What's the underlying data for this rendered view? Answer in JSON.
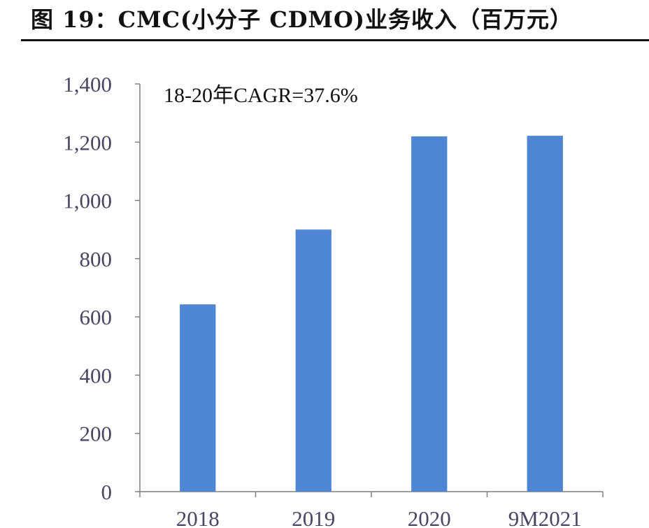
{
  "figure": {
    "title": "图 19：CMC(小分子 CDMO)业务收入（百万元）"
  },
  "chart_data": {
    "type": "bar",
    "title": "图 19：CMC(小分子 CDMO)业务收入（百万元）",
    "categories": [
      "2018",
      "2019",
      "2020",
      "9M2021"
    ],
    "values": [
      643,
      900,
      1220,
      1222
    ],
    "annotation": "18-20年CAGR=37.6%",
    "xlabel": "",
    "ylabel": "",
    "ylim": [
      0,
      1400
    ],
    "yticks": [
      0,
      200,
      400,
      600,
      800,
      1000,
      1200,
      1400
    ],
    "ytick_labels": [
      "0",
      "200",
      "400",
      "600",
      "800",
      "1,000",
      "1,200",
      "1,400"
    ],
    "grid": false,
    "legend": "none",
    "colors": {
      "bar": "#4f86d3",
      "axis": "#7f7f7f",
      "tick_text": "#4b4463",
      "annotation_text": "#111111"
    }
  }
}
